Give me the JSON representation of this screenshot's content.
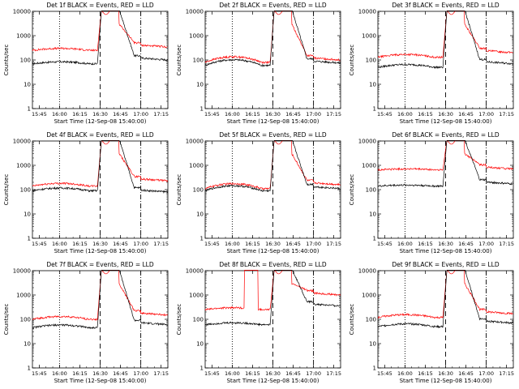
{
  "figure": {
    "panel_titles": [
      "Det 1f BLACK = Events, RED = LLD",
      "Det 2f BLACK = Events, RED = LLD",
      "Det 3f BLACK = Events, RED = LLD",
      "Det 4f BLACK = Events, RED = LLD",
      "Det 5f BLACK = Events, RED = LLD",
      "Det 6f BLACK = Events, RED = LLD",
      "Det 7f BLACK = Events, RED = LLD",
      "Det 8f BLACK = Events, RED = LLD",
      "Det 9f BLACK = Events, RED = LLD"
    ]
  },
  "chart_data": {
    "type": "line",
    "layout": "3x3 grid",
    "xlabel": "Start Time (12-Sep-08 15:40:00)",
    "ylabel": "Counts/sec",
    "yscale": "log",
    "ylim": [
      1,
      10000
    ],
    "ytick_labels": [
      "1",
      "10",
      "100",
      "1000",
      "10000"
    ],
    "xlim": [
      "15:40",
      "17:20"
    ],
    "xtick_labels": [
      "15:45",
      "16:00",
      "16:15",
      "16:30",
      "16:45",
      "17:00",
      "17:15"
    ],
    "vertical_markers": [
      {
        "time": "16:00",
        "style": "dotted"
      },
      {
        "time": "16:30",
        "style": "dashed"
      },
      {
        "time": "17:00",
        "style": "dash-dot"
      }
    ],
    "series_colors": {
      "events": "#000000",
      "lld": "#ff0000"
    },
    "panels": [
      {
        "title": "Det 1f BLACK = Events, RED = LLD",
        "events_base": 70,
        "lld_base": 250,
        "bump": 1.2,
        "post_events": 100,
        "post_lld": 340,
        "spike": false
      },
      {
        "title": "Det 2f BLACK = Events, RED = LLD",
        "events_base": 60,
        "lld_base": 80,
        "bump": 1.7,
        "post_events": 75,
        "post_lld": 100,
        "spike": false
      },
      {
        "title": "Det 3f BLACK = Events, RED = LLD",
        "events_base": 50,
        "lld_base": 130,
        "bump": 1.3,
        "post_events": 70,
        "post_lld": 200,
        "spike": false
      },
      {
        "title": "Det 4f BLACK = Events, RED = LLD",
        "events_base": 90,
        "lld_base": 140,
        "bump": 1.3,
        "post_events": 80,
        "post_lld": 230,
        "spike": false
      },
      {
        "title": "Det 5f BLACK = Events, RED = LLD",
        "events_base": 90,
        "lld_base": 110,
        "bump": 1.6,
        "post_events": 110,
        "post_lld": 160,
        "spike": false
      },
      {
        "title": "Det 6f BLACK = Events, RED = LLD",
        "events_base": 140,
        "lld_base": 650,
        "bump": 1.1,
        "post_events": 170,
        "post_lld": 700,
        "spike": false
      },
      {
        "title": "Det 7f BLACK = Events, RED = LLD",
        "events_base": 45,
        "lld_base": 100,
        "bump": 1.3,
        "post_events": 60,
        "post_lld": 150,
        "spike": false
      },
      {
        "title": "Det 8f BLACK = Events, RED = LLD",
        "events_base": 60,
        "lld_base": 250,
        "bump": 1.2,
        "post_events": 350,
        "post_lld": 1000,
        "spike": true
      },
      {
        "title": "Det 9f BLACK = Events, RED = LLD",
        "events_base": 50,
        "lld_base": 120,
        "bump": 1.3,
        "post_events": 70,
        "post_lld": 170,
        "spike": false
      }
    ]
  }
}
